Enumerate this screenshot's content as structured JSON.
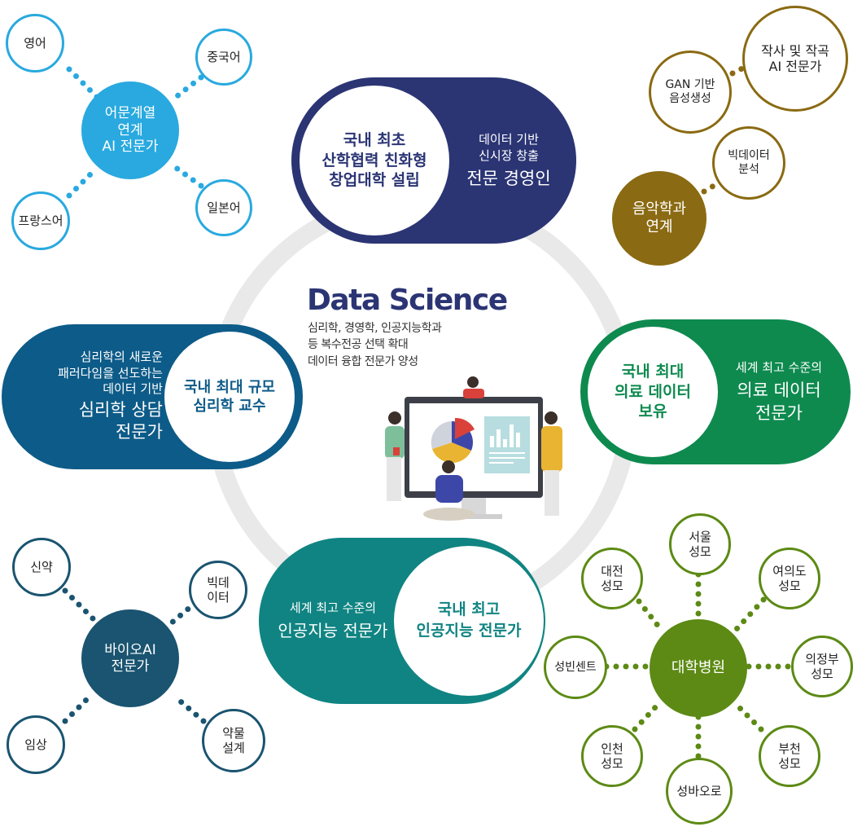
{
  "center": {
    "title": "Data Science",
    "lines": [
      "심리학, 경영학, 인공지능학과",
      "등 복수전공 선택 확대",
      "데이터 융합 전문가 양성"
    ]
  },
  "pills": {
    "top": {
      "circle_lines": [
        "국내 최초",
        "산학협력 친화형",
        "창업대학 설립"
      ],
      "outer_lines": [
        "데이터 기반",
        "신시장 창출"
      ],
      "outer_big": "전문 경영인"
    },
    "left": {
      "outer_lines": [
        "심리학의 새로운",
        "패러다임을 선도하는",
        "데이터 기반"
      ],
      "outer_big": [
        "심리학 상담",
        "전문가"
      ],
      "circle_lines": [
        "국내 최대 규모",
        "심리학 교수"
      ]
    },
    "right": {
      "circle_lines": [
        "국내 최대",
        "의료 데이터",
        "보유"
      ],
      "outer_lines": [
        "세계 최고 수준의"
      ],
      "outer_big": [
        "의료 데이터",
        "전문가"
      ]
    },
    "bottom": {
      "outer_lines": [
        "세계 최고 수준의"
      ],
      "outer_big": "인공지능 전문가",
      "circle_lines": [
        "국내 최고",
        "인공지능 전문가"
      ]
    }
  },
  "clusters": {
    "language": {
      "hub": [
        "어문계열",
        "연계",
        "AI 전문가"
      ],
      "nodes": [
        "영어",
        "중국어",
        "프랑스어",
        "일본어"
      ]
    },
    "music": {
      "hub": [
        "음악학과",
        "연계"
      ],
      "nodes": [
        [
          "작사 및 작곡",
          "AI 전문가"
        ],
        [
          "GAN 기반",
          "음성생성"
        ],
        [
          "빅데이터",
          "분석"
        ]
      ]
    },
    "bio": {
      "hub": [
        "바이오AI",
        "전문가"
      ],
      "nodes": [
        [
          "신약"
        ],
        [
          "빅데",
          "이터"
        ],
        [
          "임상"
        ],
        [
          "약물",
          "설계"
        ]
      ]
    },
    "hospital": {
      "hub": "대학병원",
      "nodes": [
        [
          "서울",
          "성모"
        ],
        [
          "대전",
          "성모"
        ],
        [
          "여의도",
          "성모"
        ],
        [
          "성빈센트"
        ],
        [
          "의정부",
          "성모"
        ],
        [
          "인천",
          "성모"
        ],
        [
          "부천",
          "성모"
        ],
        [
          "성바오로"
        ]
      ]
    }
  },
  "colors": {
    "navy": "#2b3574",
    "blue": "#0d5b88",
    "green": "#0e8a4f",
    "teal": "#108482",
    "sky": "#29a9df",
    "gold": "#8a6a12",
    "bio": "#1a5470",
    "olive": "#5c8a14",
    "ring": "#e9e9e9"
  }
}
